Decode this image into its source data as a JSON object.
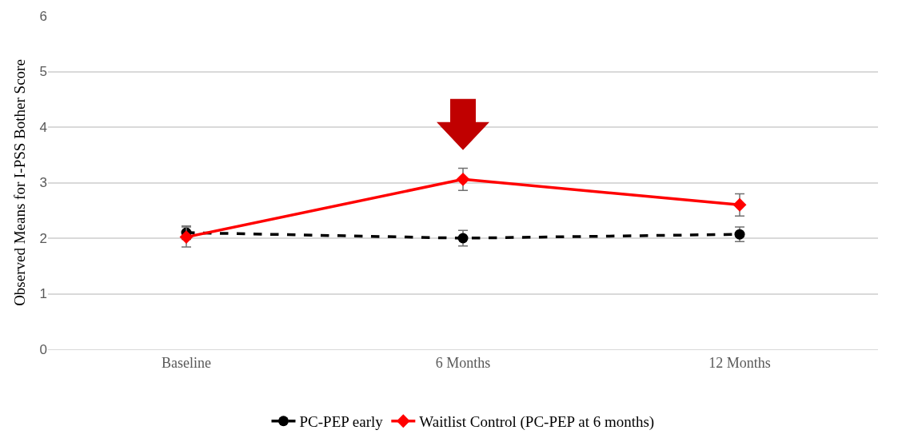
{
  "chart_data": {
    "type": "line",
    "ylabel": "Observed Means for I-PSS Bother Score",
    "categories": [
      "Baseline",
      "6 Months",
      "12 Months"
    ],
    "series": [
      {
        "name": "PC-PEP early",
        "color": "#000000",
        "line_style": "dashed",
        "marker": "circle",
        "values": [
          2.1,
          2.0,
          2.07
        ],
        "errors": [
          0.12,
          0.14,
          0.13
        ]
      },
      {
        "name": "Waitlist Control (PC-PEP at 6 months)",
        "color": "#ff0000",
        "line_style": "solid",
        "marker": "diamond",
        "values": [
          2.02,
          3.06,
          2.6
        ],
        "errors": [
          0.18,
          0.2,
          0.2
        ]
      }
    ],
    "ylim": [
      0,
      6
    ],
    "yticks": [
      0,
      1,
      2,
      3,
      4,
      5,
      6
    ],
    "grid": "y",
    "legend": "bottom"
  }
}
